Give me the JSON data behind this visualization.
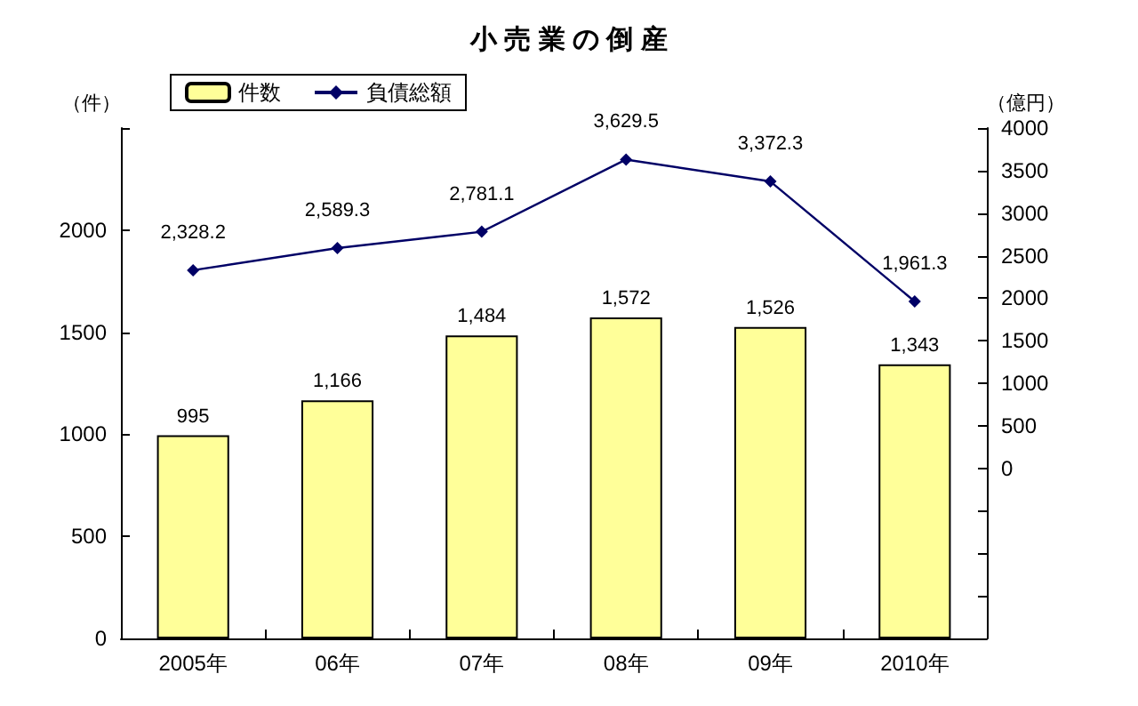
{
  "chart_data": {
    "type": "bar",
    "title": "小 売 業 の 倒 産",
    "ylabel": "（件）",
    "y2label": "（億円）",
    "categories": [
      "2005年",
      "06年",
      "07年",
      "08年",
      "09年",
      "2010年"
    ],
    "series": [
      {
        "name": "件数",
        "color": "#ffff99",
        "values": [
          995,
          1166,
          1484,
          1572,
          1526,
          1343
        ],
        "value_labels": [
          "995",
          "1,166",
          "1,484",
          "1,572",
          "1,526",
          "1,343"
        ]
      },
      {
        "name": "負債総額",
        "type": "line",
        "axis": "y2",
        "color": "#000066",
        "marker": "diamond",
        "values": [
          2328.2,
          2589.3,
          2781.1,
          3629.5,
          3372.3,
          1961.3
        ],
        "value_labels": [
          "2,328.2",
          "2,589.3",
          "2,781.1",
          "3,629.5",
          "3,372.3",
          "1,961.3"
        ]
      }
    ],
    "ylim": [
      0,
      2500
    ],
    "yticks": [
      0,
      500,
      1000,
      1500,
      2000,
      {
        "value": 2500,
        "label": null
      }
    ],
    "y2lim": [
      -2000,
      4000
    ],
    "y2ticks": [
      {
        "value": -2000,
        "label": null
      },
      {
        "value": -1500,
        "label": null
      },
      {
        "value": -1000,
        "label": null
      },
      {
        "value": -500,
        "label": null
      },
      0,
      500,
      1000,
      1500,
      2000,
      2500,
      3000,
      3500,
      4000
    ],
    "grid": false,
    "legend": "top left"
  }
}
